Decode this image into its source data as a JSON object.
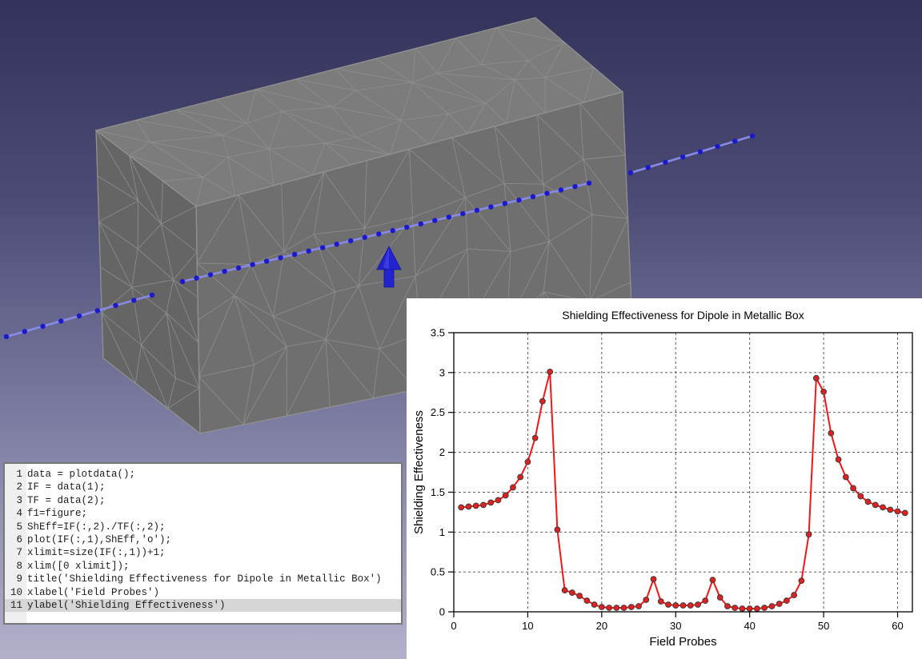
{
  "scene3d": {
    "object": "metallic-box-mesh",
    "colors": {
      "background_top": "#32325a",
      "background_bottom": "#b1b1cb",
      "box_face_top": "#7c7c7c",
      "box_face_front": "#6f6f6f",
      "box_face_left": "#656565",
      "mesh_lines": "#8e8e8e",
      "probe_dot": "#1a1acc",
      "probe_line": "#8989e8",
      "dipole_arrow": "#2222cf"
    }
  },
  "code_panel": {
    "highlighted_line": 11,
    "lines": [
      "data = plotdata();",
      "IF = data(1);",
      "TF = data(2);",
      "f1=figure;",
      "ShEff=IF(:,2)./TF(:,2);",
      "plot(IF(:,1),ShEff,'o');",
      "xlimit=size(IF(:,1))+1;",
      "xlim([0 xlimit]);",
      "title('Shielding Effectiveness for Dipole in Metallic Box')",
      "xlabel('Field Probes')",
      "ylabel('Shielding Effectiveness')"
    ]
  },
  "chart_data": {
    "type": "line",
    "title": "Shielding Effectiveness for Dipole in Metallic Box",
    "xlabel": "Field Probes",
    "ylabel": "Shielding Effectiveness",
    "xlim": [
      0,
      62
    ],
    "ylim": [
      0,
      3.5
    ],
    "xticks": [
      0,
      10,
      20,
      30,
      40,
      50,
      60
    ],
    "yticks": [
      0,
      0.5,
      1,
      1.5,
      2,
      2.5,
      3,
      3.5
    ],
    "grid": "dashed",
    "legend": "none",
    "marker": "o",
    "line_color": "#f21616",
    "marker_color": "#e32020",
    "x": [
      1,
      2,
      3,
      4,
      5,
      6,
      7,
      8,
      9,
      10,
      11,
      12,
      13,
      14,
      15,
      16,
      17,
      18,
      19,
      20,
      21,
      22,
      23,
      24,
      25,
      26,
      27,
      28,
      29,
      30,
      31,
      32,
      33,
      34,
      35,
      36,
      37,
      38,
      39,
      40,
      41,
      42,
      43,
      44,
      45,
      46,
      47,
      48,
      49,
      50,
      51,
      52,
      53,
      54,
      55,
      56,
      57,
      58,
      59,
      60,
      61
    ],
    "y": [
      1.31,
      1.32,
      1.33,
      1.34,
      1.37,
      1.4,
      1.46,
      1.56,
      1.69,
      1.88,
      2.18,
      2.64,
      3.01,
      1.03,
      0.27,
      0.24,
      0.2,
      0.14,
      0.09,
      0.06,
      0.05,
      0.05,
      0.05,
      0.06,
      0.07,
      0.15,
      0.41,
      0.13,
      0.09,
      0.08,
      0.08,
      0.08,
      0.09,
      0.14,
      0.4,
      0.18,
      0.07,
      0.05,
      0.04,
      0.04,
      0.04,
      0.05,
      0.07,
      0.1,
      0.14,
      0.21,
      0.39,
      0.97,
      2.93,
      2.76,
      2.24,
      1.91,
      1.69,
      1.55,
      1.45,
      1.38,
      1.34,
      1.31,
      1.28,
      1.26,
      1.24
    ]
  }
}
